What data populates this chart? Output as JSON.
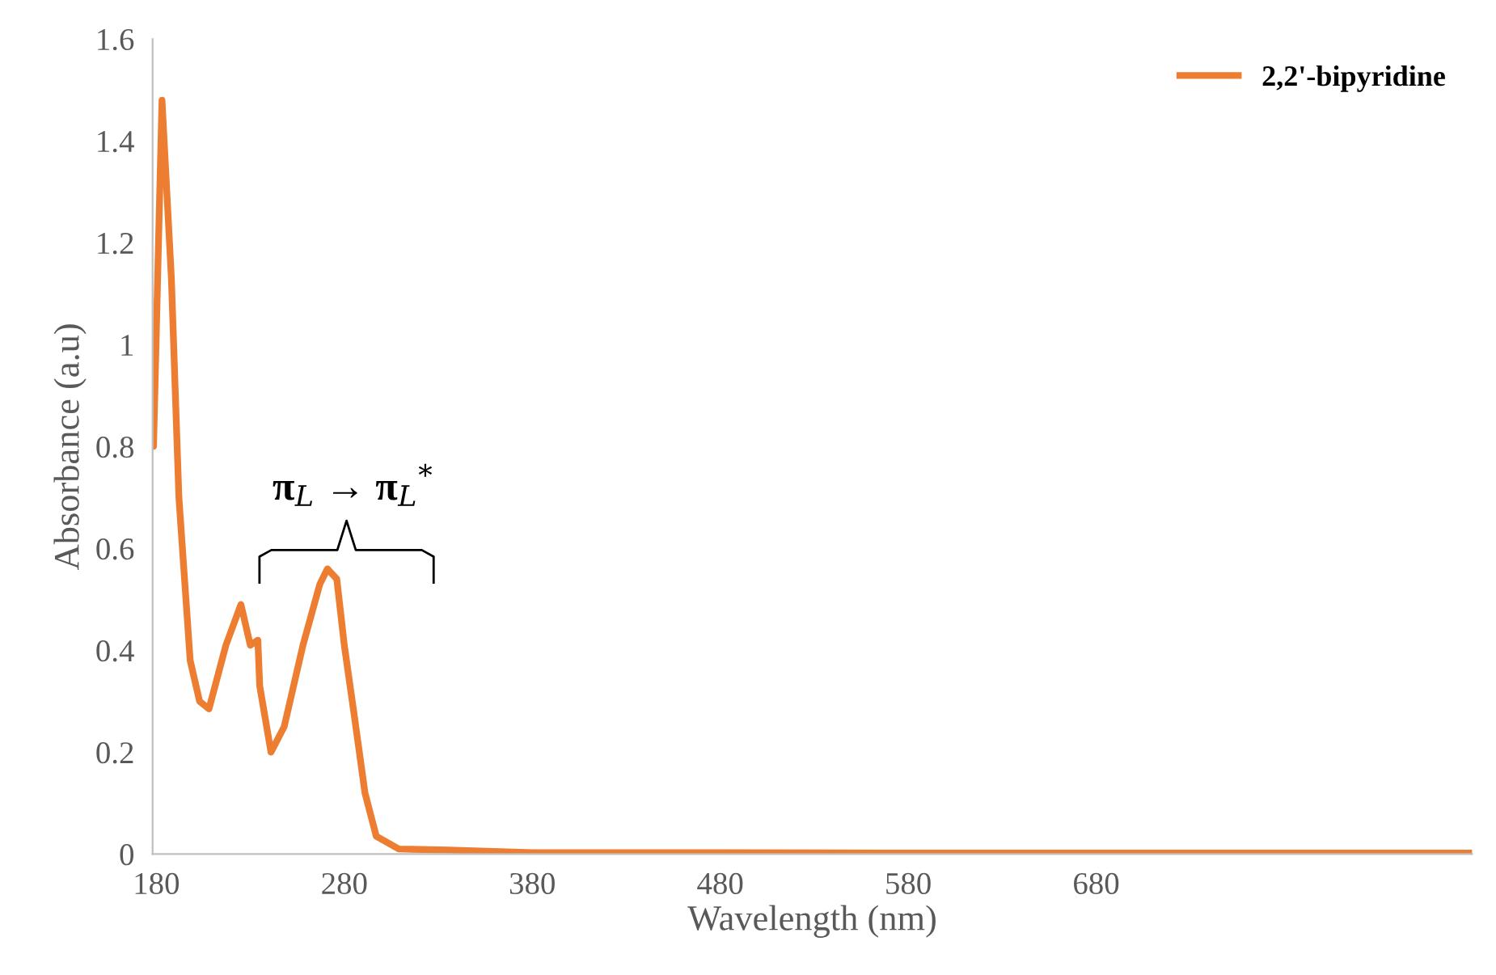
{
  "chart_data": {
    "type": "line",
    "xlabel": "Wavelength (nm)",
    "ylabel": "Absorbance (a.u)",
    "x": [
      178.5,
      183,
      188,
      192,
      198,
      203,
      208,
      217,
      225,
      230,
      234,
      235,
      241,
      248,
      258,
      267,
      271,
      276,
      280,
      285,
      291,
      297,
      309,
      335,
      380,
      480,
      566,
      680,
      880
    ],
    "series": [
      {
        "name": "2,2'-bipyridine",
        "color": "#ed7d31",
        "values": [
          0.8,
          1.48,
          1.13,
          0.7,
          0.38,
          0.3,
          0.285,
          0.41,
          0.49,
          0.41,
          0.42,
          0.33,
          0.2,
          0.25,
          0.41,
          0.53,
          0.56,
          0.54,
          0.41,
          0.28,
          0.12,
          0.035,
          0.01,
          0.008,
          0.003,
          0.003,
          0.002,
          0.002,
          0.002
        ]
      }
    ],
    "xlim": [
      178,
      880
    ],
    "xticks": [
      180,
      280,
      380,
      480,
      580,
      680
    ],
    "ylim": [
      0,
      1.6
    ],
    "yticks": [
      0,
      0.2,
      0.4,
      0.6,
      0.8,
      1,
      1.2,
      1.4,
      1.6
    ],
    "legend": "top right",
    "grid": false,
    "marker": "none",
    "line_style": "solid",
    "annotations": [
      "π$_{L}$ → π$_{L}$$^{*}$"
    ]
  }
}
